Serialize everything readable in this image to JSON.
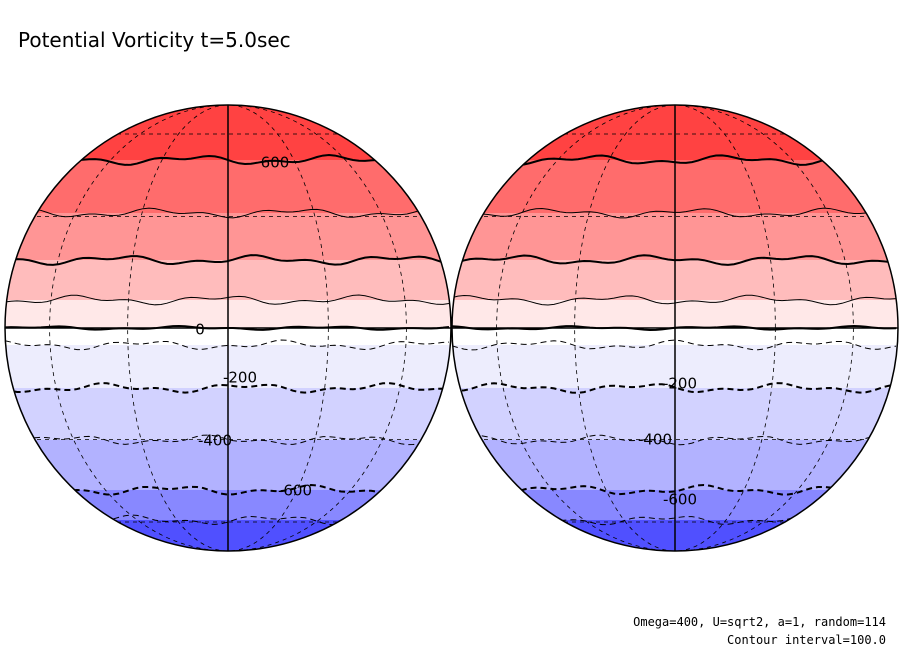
{
  "title": "Potential Vorticity t=5.0sec",
  "globes": [
    {
      "contour_labels": [
        600,
        0,
        -200,
        -400,
        -600
      ]
    },
    {
      "contour_labels": [
        -200,
        -400,
        -600
      ]
    }
  ],
  "footer": [
    "Omega=400, U=sqrt2, a=1, random=114",
    "Contour interval=100.0"
  ]
}
